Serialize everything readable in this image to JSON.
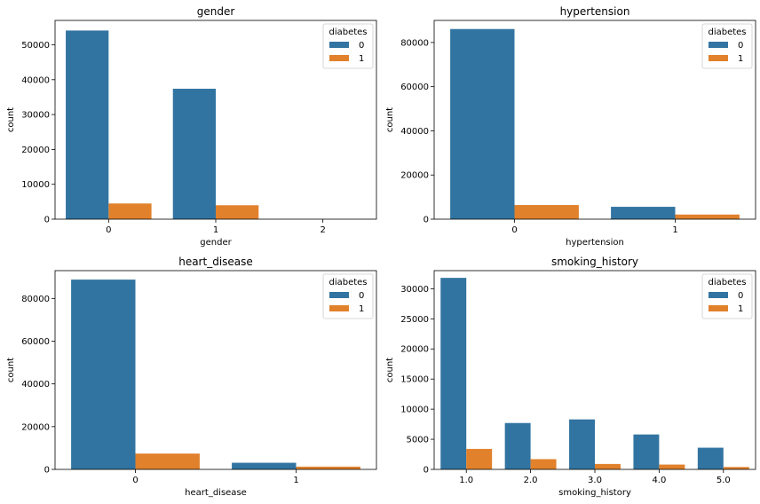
{
  "colors": {
    "class0": "#3274a1",
    "class1": "#e1812c"
  },
  "chart_data": [
    {
      "type": "bar",
      "title": "gender",
      "xlabel": "gender",
      "ylabel": "count",
      "categories": [
        "0",
        "1",
        "2"
      ],
      "ylim": [
        0,
        57000
      ],
      "yticks": [
        0,
        10000,
        20000,
        30000,
        40000,
        50000
      ],
      "legend": {
        "title": "diabetes",
        "position": "top-right"
      },
      "series": [
        {
          "name": "0",
          "values": [
            54100,
            37400,
            18
          ]
        },
        {
          "name": "1",
          "values": [
            4500,
            4000,
            0
          ]
        }
      ]
    },
    {
      "type": "bar",
      "title": "hypertension",
      "xlabel": "hypertension",
      "ylabel": "count",
      "categories": [
        "0",
        "1"
      ],
      "ylim": [
        0,
        90000
      ],
      "yticks": [
        0,
        20000,
        40000,
        60000,
        80000
      ],
      "legend": {
        "title": "diabetes",
        "position": "top-right"
      },
      "series": [
        {
          "name": "0",
          "values": [
            86100,
            5600
          ]
        },
        {
          "name": "1",
          "values": [
            6400,
            2100
          ]
        }
      ]
    },
    {
      "type": "bar",
      "title": "heart_disease",
      "xlabel": "heart_disease",
      "ylabel": "count",
      "categories": [
        "0",
        "1"
      ],
      "ylim": [
        0,
        93000
      ],
      "yticks": [
        0,
        20000,
        40000,
        60000,
        80000
      ],
      "legend": {
        "title": "diabetes",
        "position": "top-right"
      },
      "series": [
        {
          "name": "0",
          "values": [
            88800,
            3100
          ]
        },
        {
          "name": "1",
          "values": [
            7400,
            1300
          ]
        }
      ]
    },
    {
      "type": "bar",
      "title": "smoking_history",
      "xlabel": "smoking_history",
      "ylabel": "count",
      "categories": [
        "1.0",
        "2.0",
        "3.0",
        "4.0",
        "5.0"
      ],
      "ylim": [
        0,
        33000
      ],
      "yticks": [
        0,
        5000,
        10000,
        15000,
        20000,
        25000,
        30000
      ],
      "legend": {
        "title": "diabetes",
        "position": "top-right"
      },
      "series": [
        {
          "name": "0",
          "values": [
            31800,
            7700,
            8300,
            5800,
            3600
          ]
        },
        {
          "name": "1",
          "values": [
            3400,
            1700,
            900,
            800,
            400
          ]
        }
      ]
    }
  ]
}
